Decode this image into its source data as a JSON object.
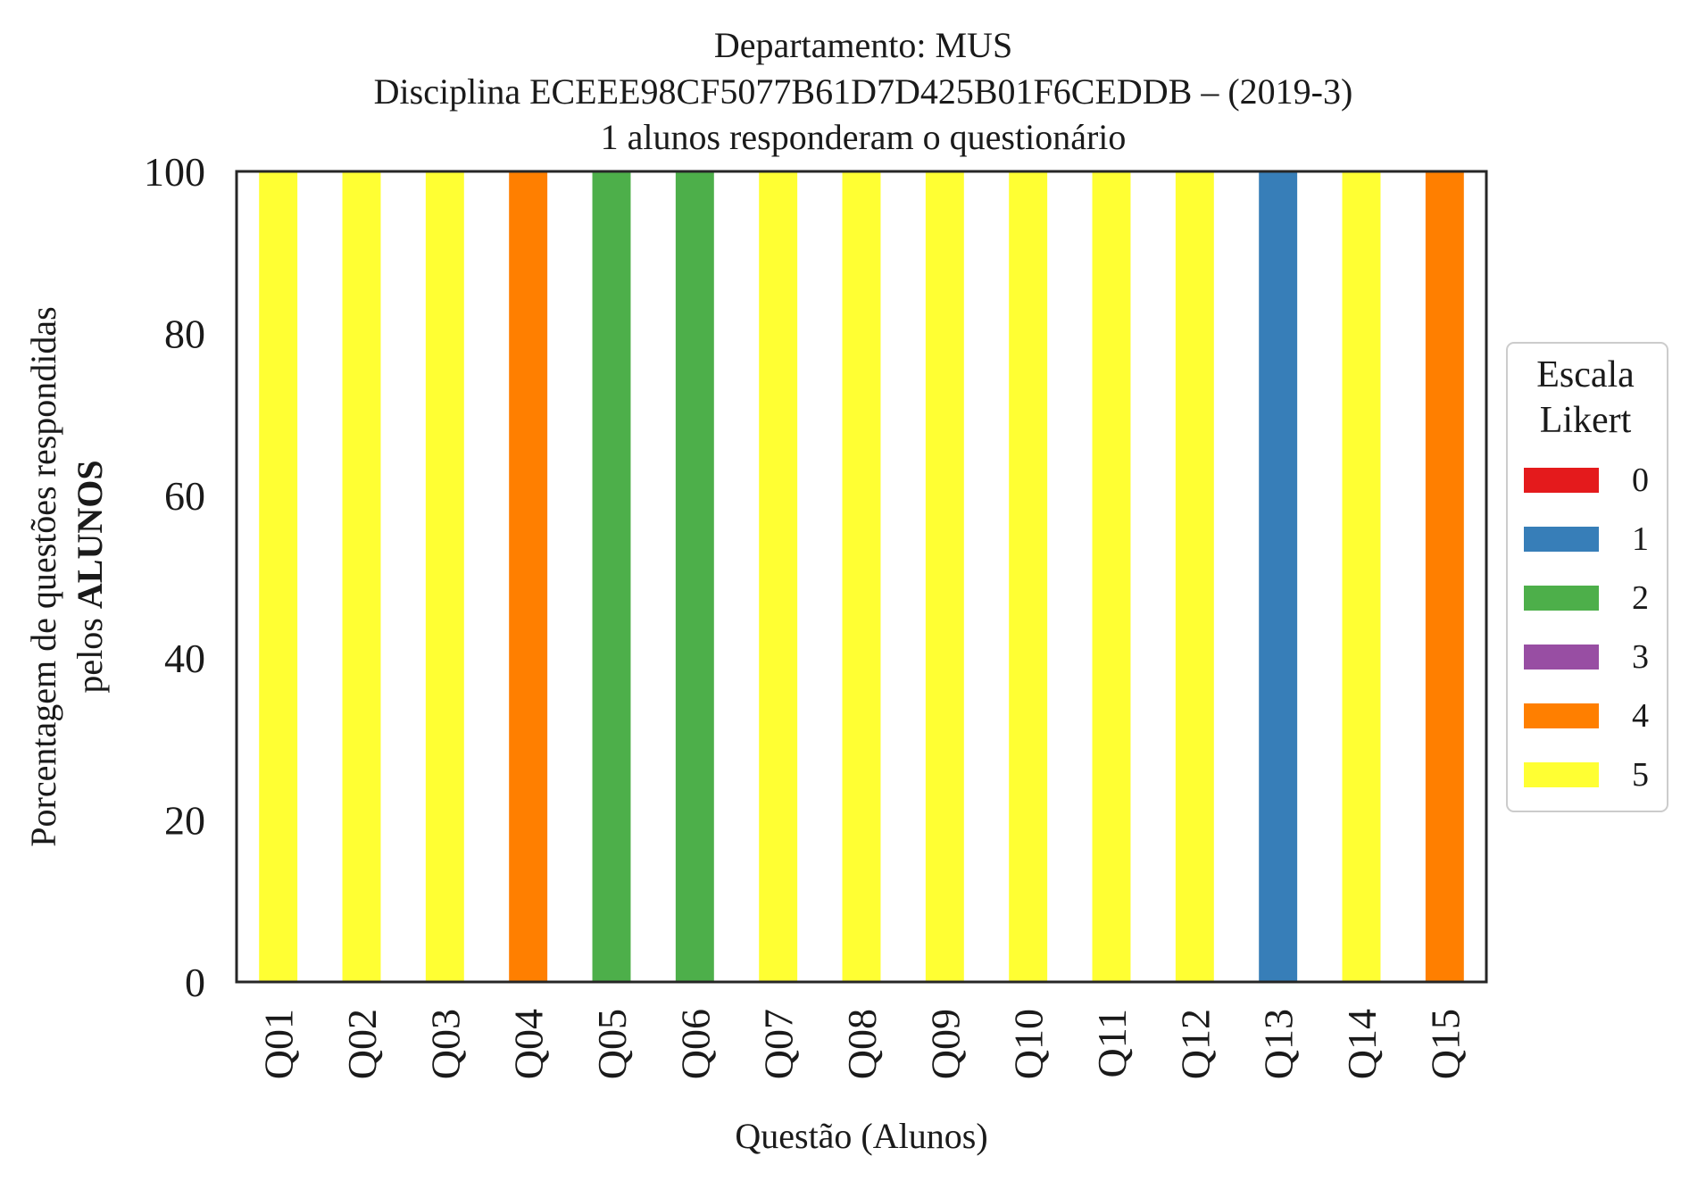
{
  "chart_data": {
    "type": "bar",
    "stacked": true,
    "title_lines": [
      "Departamento: MUS",
      "Disciplina ECEEE98CF5077B61D7D425B01F6CEDDB – (2019-3)",
      "1 alunos responderam o questionário"
    ],
    "xlabel": "Questão (Alunos)",
    "ylabel_line1": "Porcentagem de questões respondidas",
    "ylabel_line2_prefix": "pelos ",
    "ylabel_line2_bold": "ALUNOS",
    "ylim": [
      0,
      100
    ],
    "yticks": [
      "0",
      "20",
      "40",
      "60",
      "80",
      "100"
    ],
    "categories": [
      "Q01",
      "Q02",
      "Q03",
      "Q04",
      "Q05",
      "Q06",
      "Q07",
      "Q08",
      "Q09",
      "Q10",
      "Q11",
      "Q12",
      "Q13",
      "Q14",
      "Q15"
    ],
    "series": [
      {
        "name": "0",
        "color": "#e41a1c",
        "values": [
          0,
          0,
          0,
          0,
          0,
          0,
          0,
          0,
          0,
          0,
          0,
          0,
          0,
          0,
          0
        ]
      },
      {
        "name": "1",
        "color": "#377eb8",
        "values": [
          0,
          0,
          0,
          0,
          0,
          0,
          0,
          0,
          0,
          0,
          0,
          0,
          100,
          0,
          0
        ]
      },
      {
        "name": "2",
        "color": "#4daf4a",
        "values": [
          0,
          0,
          0,
          0,
          100,
          100,
          0,
          0,
          0,
          0,
          0,
          0,
          0,
          0,
          0
        ]
      },
      {
        "name": "3",
        "color": "#984ea3",
        "values": [
          0,
          0,
          0,
          0,
          0,
          0,
          0,
          0,
          0,
          0,
          0,
          0,
          0,
          0,
          0
        ]
      },
      {
        "name": "4",
        "color": "#ff7f00",
        "values": [
          0,
          0,
          0,
          100,
          0,
          0,
          0,
          0,
          0,
          0,
          0,
          0,
          0,
          0,
          100
        ]
      },
      {
        "name": "5",
        "color": "#ffff33",
        "values": [
          100,
          100,
          100,
          0,
          0,
          0,
          100,
          100,
          100,
          100,
          100,
          100,
          0,
          100,
          0
        ]
      }
    ],
    "legend": {
      "title_lines": [
        "Escala",
        "Likert"
      ],
      "placement": "center-right outside"
    },
    "grid": false
  }
}
